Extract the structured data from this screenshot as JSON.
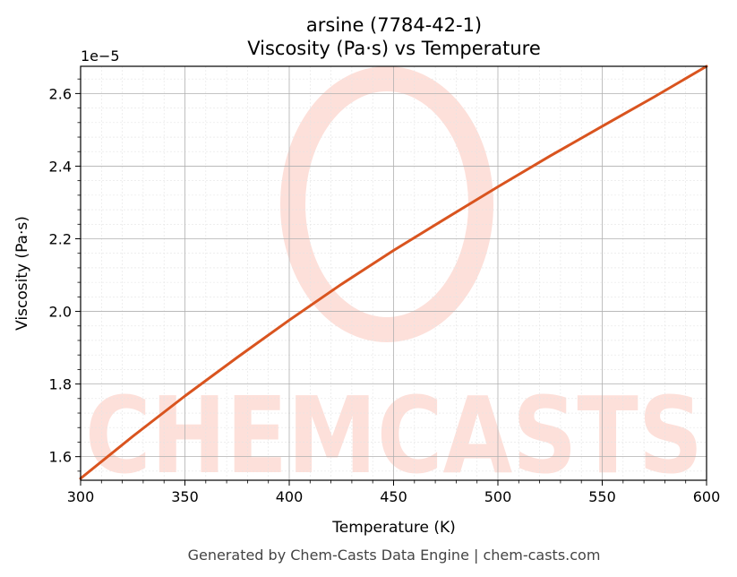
{
  "title_line1": "arsine (7784-42-1)",
  "title_line2": "Viscosity (Pa·s) vs Temperature",
  "footer": "Generated by Chem-Casts Data Engine | chem-casts.com",
  "watermark": "CHEMCASTS",
  "colors": {
    "line": "#d9541f",
    "watermark": "#fde0da",
    "grid_major": "#b0b0b0",
    "grid_minor": "#e4e4e4"
  },
  "chart_data": {
    "type": "line",
    "title": "arsine (7784-42-1)\nViscosity (Pa·s) vs Temperature",
    "xlabel": "Temperature (K)",
    "ylabel": "Viscosity (Pa·s)",
    "y_offset_label": "1e−5",
    "xlim": [
      300,
      600
    ],
    "ylim": [
      1.535,
      2.675
    ],
    "y_scale_note": "values in units of 1e-5 Pa·s",
    "grid": true,
    "x_ticks": [
      "300",
      "350",
      "400",
      "450",
      "500",
      "550",
      "600"
    ],
    "y_ticks": [
      "1.6",
      "1.8",
      "2.0",
      "2.2",
      "2.4",
      "2.6"
    ],
    "series": [
      {
        "x": [
          300,
          325,
          350,
          375,
          400,
          425,
          450,
          475,
          500,
          525,
          550,
          575,
          600
        ],
        "y": [
          1.54,
          1.656,
          1.767,
          1.873,
          1.976,
          2.075,
          2.168,
          2.256,
          2.343,
          2.428,
          2.51,
          2.591,
          2.675
        ]
      }
    ]
  }
}
